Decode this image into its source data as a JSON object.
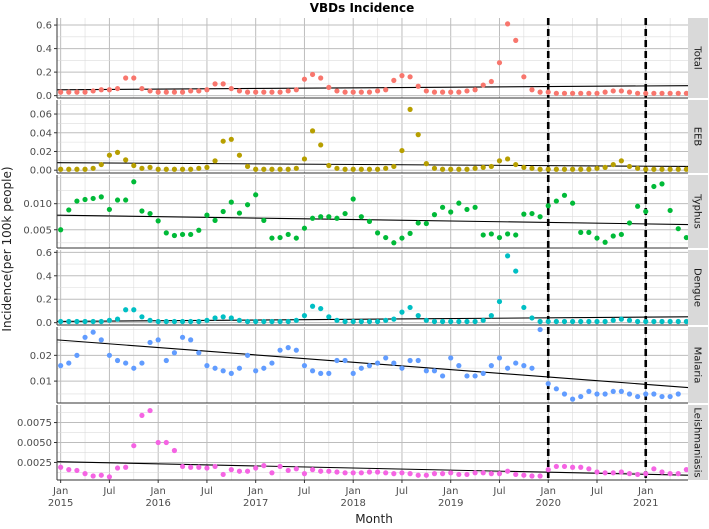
{
  "chart_data": {
    "type": "scatter",
    "title": "VBDs Incidence",
    "xlabel": "Month",
    "ylabel": "Incidence(per 100k people)",
    "x_range": [
      "2015-01",
      "2021-06"
    ],
    "x_ticks": [
      {
        "month": "2015-01",
        "label": [
          "Jan",
          "2015"
        ]
      },
      {
        "month": "2015-07",
        "label": [
          "Jul"
        ]
      },
      {
        "month": "2016-01",
        "label": [
          "Jan",
          "2016"
        ]
      },
      {
        "month": "2016-07",
        "label": [
          "Jul"
        ]
      },
      {
        "month": "2017-01",
        "label": [
          "Jan",
          "2017"
        ]
      },
      {
        "month": "2017-07",
        "label": [
          "Jul"
        ]
      },
      {
        "month": "2018-01",
        "label": [
          "Jan",
          "2018"
        ]
      },
      {
        "month": "2018-07",
        "label": [
          "Jul"
        ]
      },
      {
        "month": "2019-01",
        "label": [
          "Jan",
          "2019"
        ]
      },
      {
        "month": "2019-07",
        "label": [
          "Jul"
        ]
      },
      {
        "month": "2020-01",
        "label": [
          "Jan",
          "2020"
        ]
      },
      {
        "month": "2020-07",
        "label": [
          "Jul"
        ]
      },
      {
        "month": "2021-01",
        "label": [
          "Jan",
          "2021"
        ]
      }
    ],
    "vlines": [
      "2020-01",
      "2021-01"
    ],
    "grid": true,
    "legend": "none",
    "facet_strip_position": "right",
    "panels": [
      {
        "name": "Total",
        "color": "#F8766D",
        "ylim": [
          -0.02,
          0.66
        ],
        "yticks": [
          0.0,
          0.2,
          0.4,
          0.6
        ],
        "ytick_labels": [
          "0.0",
          "0.2",
          "0.4",
          "0.6"
        ],
        "trend": [
          0.05,
          0.085
        ],
        "start": "2015-01",
        "values": [
          0.03,
          0.03,
          0.03,
          0.03,
          0.04,
          0.05,
          0.05,
          0.06,
          0.15,
          0.15,
          0.06,
          0.04,
          0.03,
          0.03,
          0.03,
          0.03,
          0.04,
          0.04,
          0.05,
          0.1,
          0.1,
          0.06,
          0.04,
          0.03,
          0.03,
          0.03,
          0.03,
          0.03,
          0.04,
          0.05,
          0.14,
          0.18,
          0.15,
          0.07,
          0.04,
          0.03,
          0.03,
          0.03,
          0.03,
          0.04,
          0.05,
          0.13,
          0.17,
          0.16,
          0.08,
          0.04,
          0.03,
          0.03,
          0.03,
          0.03,
          0.04,
          0.05,
          0.09,
          0.12,
          0.28,
          0.61,
          0.47,
          0.16,
          0.05,
          0.03,
          0.03,
          0.02,
          0.02,
          0.02,
          0.02,
          0.02,
          0.02,
          0.03,
          0.04,
          0.04,
          0.03,
          0.02,
          0.02,
          0.02,
          0.02,
          0.02,
          0.02,
          0.02
        ]
      },
      {
        "name": "EEB",
        "color": "#B79F00",
        "ylim": [
          -0.003,
          0.075
        ],
        "yticks": [
          0.0,
          0.02,
          0.04,
          0.06
        ],
        "ytick_labels": [
          "0.00",
          "0.02",
          "0.04",
          "0.06"
        ],
        "trend": [
          0.008,
          0.004
        ],
        "start": "2015-01",
        "values": [
          0.001,
          0.001,
          0.001,
          0.001,
          0.002,
          0.006,
          0.016,
          0.019,
          0.011,
          0.005,
          0.002,
          0.003,
          0.001,
          0.001,
          0.001,
          0.001,
          0.001,
          0.002,
          0.003,
          0.01,
          0.031,
          0.033,
          0.016,
          0.004,
          0.001,
          0.001,
          0.001,
          0.001,
          0.001,
          0.002,
          0.012,
          0.042,
          0.027,
          0.005,
          0.002,
          0.001,
          0.001,
          0.001,
          0.001,
          0.001,
          0.002,
          0.004,
          0.021,
          0.065,
          0.038,
          0.007,
          0.002,
          0.001,
          0.001,
          0.001,
          0.001,
          0.002,
          0.003,
          0.004,
          0.01,
          0.012,
          0.006,
          0.003,
          0.002,
          0.001,
          0.001,
          0.001,
          0.001,
          0.001,
          0.001,
          0.001,
          0.002,
          0.003,
          0.006,
          0.01,
          0.004,
          0.002,
          0.001,
          0.001,
          0.001,
          0.001,
          0.001,
          0.001
        ]
      },
      {
        "name": "Typhus",
        "color": "#00BA38",
        "ylim": [
          0.0015,
          0.0155
        ],
        "yticks": [
          0.005,
          0.01
        ],
        "ytick_labels": [
          "0.005",
          "0.010"
        ],
        "trend": [
          0.0078,
          0.006
        ],
        "start": "2014-12",
        "values": [
          0.0061,
          0.005,
          0.0088,
          0.0105,
          0.0108,
          0.011,
          0.0113,
          0.0089,
          0.0107,
          0.0107,
          0.0142,
          0.0086,
          0.0081,
          0.0067,
          0.0044,
          0.0039,
          0.0041,
          0.0041,
          0.0049,
          0.0078,
          0.0068,
          0.0085,
          0.0103,
          0.0082,
          0.0098,
          0.0117,
          0.0068,
          0.0034,
          0.0035,
          0.0041,
          0.0034,
          0.0053,
          0.0072,
          0.0075,
          0.0075,
          0.0072,
          0.0081,
          0.0109,
          0.0075,
          0.0066,
          0.0044,
          0.0035,
          0.0025,
          0.0034,
          0.0043,
          0.0063,
          0.0062,
          0.0079,
          0.0093,
          0.0084,
          0.0101,
          0.0089,
          0.0093,
          0.004,
          0.0042,
          0.0035,
          0.0042,
          0.004,
          0.008,
          0.0081,
          0.0075,
          0.0096,
          0.0105,
          0.0116,
          0.0101,
          0.0045,
          0.0045,
          0.0034,
          0.0026,
          0.0038,
          0.0041,
          0.0063,
          0.0095,
          0.0085,
          0.0133,
          0.0138,
          0.0087,
          0.0052,
          0.0035,
          0.0032,
          0.0031,
          0.0074
        ]
      },
      {
        "name": "Dengue",
        "color": "#00BFC4",
        "ylim": [
          -0.02,
          0.62
        ],
        "yticks": [
          0.0,
          0.2,
          0.4,
          0.6
        ],
        "ytick_labels": [
          "0.0",
          "0.2",
          "0.4",
          "0.6"
        ],
        "trend": [
          0.01,
          0.05
        ],
        "start": "2015-01",
        "values": [
          0.01,
          0.01,
          0.01,
          0.01,
          0.01,
          0.01,
          0.02,
          0.03,
          0.11,
          0.11,
          0.05,
          0.02,
          0.01,
          0.01,
          0.01,
          0.01,
          0.01,
          0.01,
          0.02,
          0.04,
          0.05,
          0.04,
          0.02,
          0.01,
          0.01,
          0.01,
          0.01,
          0.01,
          0.01,
          0.02,
          0.06,
          0.14,
          0.12,
          0.05,
          0.02,
          0.01,
          0.01,
          0.01,
          0.01,
          0.01,
          0.02,
          0.03,
          0.09,
          0.13,
          0.06,
          0.02,
          0.01,
          0.01,
          0.01,
          0.01,
          0.01,
          0.01,
          0.02,
          0.06,
          0.18,
          0.57,
          0.44,
          0.13,
          0.04,
          0.01,
          0.01,
          0.01,
          0.01,
          0.01,
          0.01,
          0.01,
          0.01,
          0.01,
          0.02,
          0.03,
          0.02,
          0.01,
          0.01,
          0.01,
          0.01,
          0.01,
          0.01,
          0.01
        ]
      },
      {
        "name": "Malaria",
        "color": "#619CFF",
        "ylim": [
          0.0015,
          0.031
        ],
        "yticks": [
          0.01,
          0.02
        ],
        "ytick_labels": [
          "0.01",
          "0.02"
        ],
        "trend": [
          0.026,
          0.0075
        ],
        "start": "2014-12",
        "values": [
          0.019,
          0.016,
          0.017,
          0.02,
          0.027,
          0.029,
          0.026,
          0.02,
          0.018,
          0.017,
          0.015,
          0.017,
          0.025,
          0.026,
          0.018,
          0.021,
          0.027,
          0.026,
          0.021,
          0.016,
          0.015,
          0.014,
          0.013,
          0.015,
          0.02,
          0.014,
          0.015,
          0.017,
          0.022,
          0.023,
          0.022,
          0.016,
          0.014,
          0.013,
          0.013,
          0.018,
          0.018,
          0.013,
          0.015,
          0.016,
          0.017,
          0.019,
          0.017,
          0.015,
          0.018,
          0.018,
          0.014,
          0.014,
          0.012,
          0.019,
          0.016,
          0.012,
          0.012,
          0.013,
          0.016,
          0.019,
          0.015,
          0.017,
          0.016,
          0.015,
          0.03,
          0.009,
          0.007,
          0.005,
          0.003,
          0.004,
          0.006,
          0.005,
          0.005,
          0.006,
          0.006,
          0.005,
          0.004,
          0.005,
          0.005,
          0.004,
          0.004,
          0.005
        ]
      },
      {
        "name": "Leishmaniasis",
        "color": "#F564E3",
        "ylim": [
          0.0003,
          0.0097
        ],
        "yticks": [
          0.0025,
          0.005,
          0.0075
        ],
        "ytick_labels": [
          "0.0025",
          "0.0050",
          "0.0075"
        ],
        "trend": [
          0.0026,
          0.0009
        ],
        "start": "2014-12",
        "values": [
          0.0022,
          0.0019,
          0.0016,
          0.0015,
          0.0011,
          0.0008,
          0.0009,
          0.0007,
          0.0018,
          0.0019,
          0.0046,
          0.0084,
          0.009,
          0.005,
          0.005,
          0.004,
          0.002,
          0.0019,
          0.0019,
          0.0018,
          0.002,
          0.001,
          0.0016,
          0.0014,
          0.0014,
          0.0018,
          0.0021,
          0.0012,
          0.002,
          0.0015,
          0.0017,
          0.0011,
          0.0016,
          0.0014,
          0.0014,
          0.0013,
          0.0012,
          0.0012,
          0.0012,
          0.0013,
          0.0013,
          0.0012,
          0.0011,
          0.0012,
          0.0011,
          0.0009,
          0.0009,
          0.0011,
          0.0011,
          0.0012,
          0.001,
          0.001,
          0.0012,
          0.0012,
          0.0011,
          0.0011,
          0.0014,
          0.001,
          0.0009,
          0.0008,
          0.0008,
          0.0016,
          0.002,
          0.002,
          0.0019,
          0.0019,
          0.0017,
          0.0013,
          0.0012,
          0.0012,
          0.0013,
          0.0011,
          0.001,
          0.0011,
          0.0017,
          0.0013,
          0.0011,
          0.0011,
          0.0016
        ]
      }
    ]
  }
}
